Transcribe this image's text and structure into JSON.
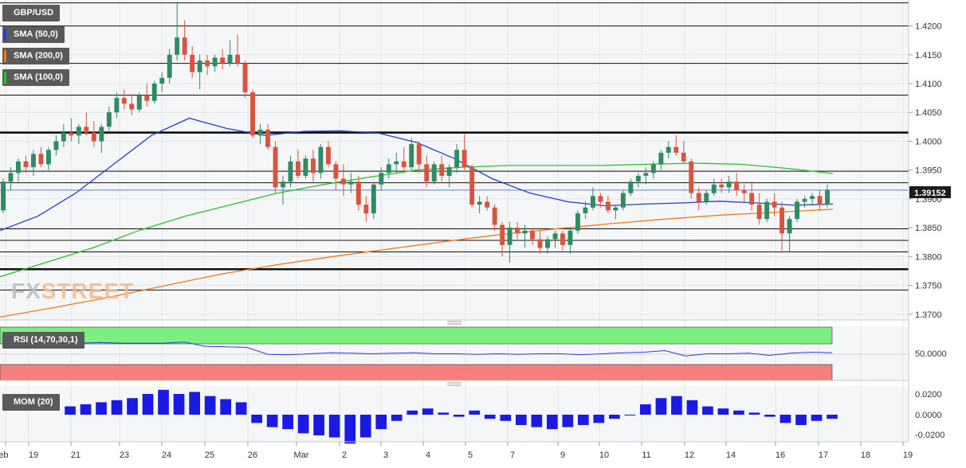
{
  "symbol": "GBP/USD",
  "logo": {
    "part1": "FX",
    "part2": "STREET"
  },
  "indicators": {
    "sma50": {
      "label": "SMA (50,0)",
      "color": "#1f3fd1"
    },
    "sma200": {
      "label": "SMA (200,0)",
      "color": "#f07a17"
    },
    "sma100": {
      "label": "SMA (100,0)",
      "color": "#28c428"
    },
    "rsi": {
      "label": "RSI (14,70,30,1)",
      "tick": "50.0000"
    },
    "mom": {
      "label": "MOM (20)",
      "ticks": [
        "0.0200",
        "0.0000",
        "-0.0200"
      ]
    }
  },
  "price_axis": {
    "ticks": [
      "1.4200",
      "1.4150",
      "1.4100",
      "1.4050",
      "1.4000",
      "1.3950",
      "1.3900",
      "1.3850",
      "1.3800",
      "1.3750",
      "1.3700"
    ],
    "current": "1.39152"
  },
  "x_axis": {
    "labels": [
      "Feb",
      "19",
      "21",
      "23",
      "24",
      "25",
      "26",
      "Mar",
      "2",
      "3",
      "4",
      "5",
      "7",
      "9",
      "10",
      "11",
      "12",
      "14",
      "16",
      "17",
      "18",
      "19"
    ]
  },
  "colors": {
    "up": "#2e8b63",
    "down": "#d9533f",
    "rsi_upper": "#7cf07c",
    "rsi_lower": "#f47f7f",
    "mom": "#1a1ae6"
  },
  "chart_data": {
    "type": "line",
    "title": "GBP/USD",
    "ylim": [
      1.369,
      1.4245
    ],
    "horizontal_levels": [
      1.424,
      1.42,
      1.4135,
      1.408,
      1.4015,
      1.3948,
      1.3928,
      1.3848,
      1.3828,
      1.3808,
      1.3778,
      1.3742
    ],
    "candles": [
      [
        1.388,
        1.3935,
        1.3875,
        1.393
      ],
      [
        1.393,
        1.3955,
        1.3915,
        1.3945
      ],
      [
        1.3945,
        1.397,
        1.393,
        1.3965
      ],
      [
        1.3965,
        1.3975,
        1.3945,
        1.3955
      ],
      [
        1.3955,
        1.3985,
        1.394,
        1.3978
      ],
      [
        1.3978,
        1.399,
        1.3955,
        1.396
      ],
      [
        1.396,
        1.399,
        1.395,
        1.3985
      ],
      [
        1.3985,
        1.401,
        1.3975,
        1.4
      ],
      [
        1.4,
        1.403,
        1.399,
        1.4015
      ],
      [
        1.4015,
        1.404,
        1.4,
        1.401
      ],
      [
        1.401,
        1.403,
        1.3995,
        1.4025
      ],
      [
        1.4025,
        1.405,
        1.401,
        1.4015
      ],
      [
        1.4015,
        1.4035,
        1.399,
        1.4
      ],
      [
        1.4,
        1.403,
        1.398,
        1.4025
      ],
      [
        1.4025,
        1.406,
        1.4015,
        1.405
      ],
      [
        1.405,
        1.4085,
        1.404,
        1.4075
      ],
      [
        1.4075,
        1.409,
        1.4055,
        1.4065
      ],
      [
        1.4065,
        1.408,
        1.4045,
        1.4055
      ],
      [
        1.4055,
        1.4085,
        1.405,
        1.408
      ],
      [
        1.408,
        1.41,
        1.406,
        1.407
      ],
      [
        1.407,
        1.4105,
        1.4065,
        1.41
      ],
      [
        1.41,
        1.412,
        1.4085,
        1.411
      ],
      [
        1.411,
        1.416,
        1.41,
        1.415
      ],
      [
        1.415,
        1.424,
        1.414,
        1.418
      ],
      [
        1.418,
        1.421,
        1.414,
        1.415
      ],
      [
        1.415,
        1.4165,
        1.411,
        1.412
      ],
      [
        1.412,
        1.415,
        1.409,
        1.414
      ],
      [
        1.414,
        1.415,
        1.4115,
        1.413
      ],
      [
        1.413,
        1.415,
        1.412,
        1.4145
      ],
      [
        1.4145,
        1.416,
        1.4125,
        1.4135
      ],
      [
        1.4135,
        1.4175,
        1.413,
        1.415
      ],
      [
        1.415,
        1.4185,
        1.413,
        1.4135
      ],
      [
        1.4135,
        1.414,
        1.4075,
        1.4085
      ],
      [
        1.4085,
        1.409,
        1.4005,
        1.401
      ],
      [
        1.401,
        1.403,
        1.3995,
        1.402
      ],
      [
        1.402,
        1.403,
        1.3985,
        1.399
      ],
      [
        1.399,
        1.4,
        1.391,
        1.392
      ],
      [
        1.392,
        1.394,
        1.389,
        1.393
      ],
      [
        1.393,
        1.3975,
        1.392,
        1.3965
      ],
      [
        1.3965,
        1.3985,
        1.3935,
        1.394
      ],
      [
        1.394,
        1.3975,
        1.3935,
        1.397
      ],
      [
        1.397,
        1.3985,
        1.393,
        1.3945
      ],
      [
        1.3945,
        1.3995,
        1.3935,
        1.399
      ],
      [
        1.399,
        1.4,
        1.3955,
        1.396
      ],
      [
        1.396,
        1.3965,
        1.3915,
        1.3935
      ],
      [
        1.3935,
        1.396,
        1.3905,
        1.3925
      ],
      [
        1.3925,
        1.3945,
        1.391,
        1.393
      ],
      [
        1.393,
        1.394,
        1.388,
        1.389
      ],
      [
        1.389,
        1.3905,
        1.386,
        1.3875
      ],
      [
        1.3875,
        1.393,
        1.3865,
        1.3925
      ],
      [
        1.3925,
        1.3955,
        1.3915,
        1.3945
      ],
      [
        1.3945,
        1.397,
        1.3935,
        1.396
      ],
      [
        1.396,
        1.398,
        1.3945,
        1.3965
      ],
      [
        1.3965,
        1.399,
        1.3945,
        1.3955
      ],
      [
        1.3955,
        1.4005,
        1.395,
        1.3995
      ],
      [
        1.3995,
        1.4,
        1.3945,
        1.396
      ],
      [
        1.396,
        1.3975,
        1.392,
        1.393
      ],
      [
        1.393,
        1.3965,
        1.3925,
        1.396
      ],
      [
        1.396,
        1.3975,
        1.393,
        1.394
      ],
      [
        1.394,
        1.396,
        1.392,
        1.3955
      ],
      [
        1.3955,
        1.3995,
        1.3945,
        1.3985
      ],
      [
        1.3985,
        1.4012,
        1.395,
        1.3955
      ],
      [
        1.3955,
        1.396,
        1.3885,
        1.389
      ],
      [
        1.389,
        1.3905,
        1.3875,
        1.3895
      ],
      [
        1.3895,
        1.3905,
        1.388,
        1.3885
      ],
      [
        1.3885,
        1.389,
        1.3845,
        1.3855
      ],
      [
        1.3855,
        1.386,
        1.38,
        1.382
      ],
      [
        1.382,
        1.386,
        1.379,
        1.385
      ],
      [
        1.385,
        1.386,
        1.383,
        1.384
      ],
      [
        1.384,
        1.3855,
        1.3815,
        1.3845
      ],
      [
        1.3845,
        1.385,
        1.382,
        1.383
      ],
      [
        1.383,
        1.3845,
        1.3805,
        1.3815
      ],
      [
        1.3815,
        1.3835,
        1.3805,
        1.383
      ],
      [
        1.383,
        1.3845,
        1.3815,
        1.384
      ],
      [
        1.384,
        1.3845,
        1.381,
        1.382
      ],
      [
        1.382,
        1.385,
        1.3805,
        1.3845
      ],
      [
        1.3845,
        1.388,
        1.384,
        1.3875
      ],
      [
        1.3875,
        1.3895,
        1.3865,
        1.3885
      ],
      [
        1.3885,
        1.392,
        1.388,
        1.3905
      ],
      [
        1.3905,
        1.391,
        1.3885,
        1.3895
      ],
      [
        1.3895,
        1.3905,
        1.3875,
        1.388
      ],
      [
        1.388,
        1.389,
        1.3865,
        1.3885
      ],
      [
        1.3885,
        1.3915,
        1.388,
        1.391
      ],
      [
        1.391,
        1.3935,
        1.3905,
        1.393
      ],
      [
        1.393,
        1.3945,
        1.392,
        1.394
      ],
      [
        1.394,
        1.3955,
        1.3925,
        1.3945
      ],
      [
        1.3945,
        1.3965,
        1.3935,
        1.396
      ],
      [
        1.396,
        1.3985,
        1.395,
        1.398
      ],
      [
        1.398,
        1.4,
        1.397,
        1.399
      ],
      [
        1.399,
        1.401,
        1.3975,
        1.398
      ],
      [
        1.398,
        1.4,
        1.396,
        1.3965
      ],
      [
        1.3965,
        1.397,
        1.39,
        1.391
      ],
      [
        1.391,
        1.392,
        1.388,
        1.3895
      ],
      [
        1.3895,
        1.3915,
        1.389,
        1.391
      ],
      [
        1.391,
        1.3935,
        1.3905,
        1.3925
      ],
      [
        1.3925,
        1.3935,
        1.391,
        1.392
      ],
      [
        1.392,
        1.394,
        1.391,
        1.393
      ],
      [
        1.393,
        1.3945,
        1.3905,
        1.3915
      ],
      [
        1.3915,
        1.3925,
        1.3895,
        1.391
      ],
      [
        1.391,
        1.393,
        1.388,
        1.389
      ],
      [
        1.389,
        1.391,
        1.3855,
        1.3865
      ],
      [
        1.3865,
        1.39,
        1.386,
        1.3895
      ],
      [
        1.3895,
        1.391,
        1.387,
        1.3885
      ],
      [
        1.3885,
        1.3895,
        1.381,
        1.384
      ],
      [
        1.384,
        1.387,
        1.3808,
        1.3865
      ],
      [
        1.3865,
        1.39,
        1.386,
        1.3895
      ],
      [
        1.3895,
        1.3905,
        1.3885,
        1.39
      ],
      [
        1.39,
        1.391,
        1.389,
        1.3905
      ],
      [
        1.3905,
        1.3915,
        1.388,
        1.389
      ],
      [
        1.389,
        1.3925,
        1.3885,
        1.3915
      ]
    ],
    "sma50": [
      1.3845,
      1.387,
      1.391,
      1.396,
      1.401,
      1.404,
      1.4022,
      1.401,
      1.4017,
      1.4018,
      1.4014,
      1.3998,
      1.397,
      1.3935,
      1.391,
      1.3895,
      1.3888,
      1.3891,
      1.3893,
      1.3896,
      1.3893,
      1.3889,
      1.3891
    ],
    "sma100": [
      1.3765,
      1.379,
      1.3815,
      1.3845,
      1.387,
      1.389,
      1.391,
      1.3925,
      1.3938,
      1.395,
      1.3955,
      1.3958,
      1.3958,
      1.3958,
      1.396,
      1.3962,
      1.396,
      1.3953,
      1.3944
    ],
    "sma200": [
      1.3695,
      1.3712,
      1.373,
      1.375,
      1.377,
      1.3786,
      1.38,
      1.3813,
      1.3826,
      1.3838,
      1.3848,
      1.3857,
      1.3865,
      1.3872,
      1.3877,
      1.3882
    ],
    "rsi": [
      70,
      71,
      70,
      70,
      70,
      72,
      64,
      63,
      62,
      49,
      48,
      50,
      52,
      51,
      50,
      51,
      52,
      50,
      50,
      49,
      50,
      49,
      50,
      50,
      48,
      50,
      52,
      53,
      56,
      46,
      50,
      50,
      51,
      47,
      51,
      53,
      52
    ],
    "mom": [
      0.008,
      0.01,
      0.012,
      0.014,
      0.016,
      0.02,
      0.024,
      0.02,
      0.022,
      0.018,
      0.015,
      0.012,
      -0.008,
      -0.012,
      -0.014,
      -0.018,
      -0.02,
      -0.022,
      -0.028,
      -0.022,
      -0.014,
      -0.006,
      0.004,
      0.006,
      0.002,
      -0.002,
      0.004,
      -0.004,
      -0.006,
      -0.01,
      -0.012,
      -0.014,
      -0.012,
      -0.01,
      -0.008,
      -0.004,
      0.0,
      0.01,
      0.016,
      0.018,
      0.014,
      0.008,
      0.006,
      0.004,
      0.002,
      -0.002,
      -0.008,
      -0.01,
      -0.006,
      -0.004
    ]
  }
}
